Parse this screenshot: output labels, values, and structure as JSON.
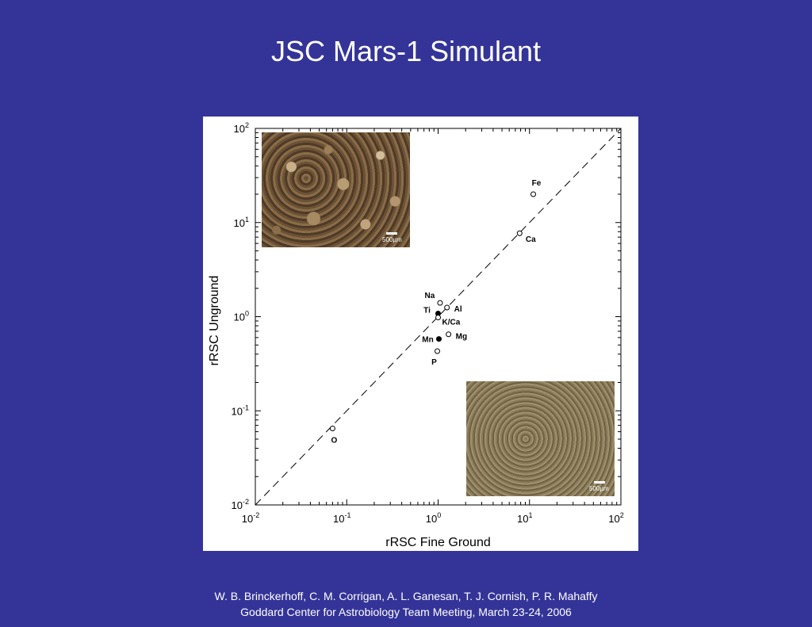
{
  "slide": {
    "title": "JSC Mars-1 Simulant",
    "footer_authors": "W. B. Brinckerhoff, C. M. Corrigan, A. L. Ganesan, T. J. Cornish, P. R. Mahaffy",
    "footer_meeting": "Goddard Center for Astrobiology Team Meeting, March 23-24, 2006"
  },
  "colors": {
    "background": "#343498",
    "panel": "#ffffff",
    "text": "#ffffff"
  },
  "insets": {
    "unground_scale": "500µm",
    "fine_scale": "500µm"
  },
  "chart_data": {
    "type": "scatter",
    "title": "",
    "xlabel": "rRSC Fine Ground",
    "ylabel": "rRSC Unground",
    "xscale": "log",
    "yscale": "log",
    "xlim": [
      0.01,
      100
    ],
    "ylim": [
      0.01,
      100
    ],
    "x_ticks": [
      {
        "base": "10",
        "exp": "-2"
      },
      {
        "base": "10",
        "exp": "-1"
      },
      {
        "base": "10",
        "exp": "0"
      },
      {
        "base": "10",
        "exp": "1"
      },
      {
        "base": "10",
        "exp": "2"
      }
    ],
    "y_ticks": [
      {
        "base": "10",
        "exp": "-2"
      },
      {
        "base": "10",
        "exp": "-1"
      },
      {
        "base": "10",
        "exp": "0"
      },
      {
        "base": "10",
        "exp": "1"
      },
      {
        "base": "10",
        "exp": "2"
      }
    ],
    "reference_line": "y = x (dashed)",
    "grid": false,
    "points": [
      {
        "label": "Fe",
        "x": 11,
        "y": 20,
        "filled": false
      },
      {
        "label": "Ca",
        "x": 7.8,
        "y": 7.7,
        "filled": false
      },
      {
        "label": "Na",
        "x": 1.05,
        "y": 1.4,
        "filled": false
      },
      {
        "label": "Al",
        "x": 1.25,
        "y": 1.25,
        "filled": false
      },
      {
        "label": "Ti",
        "x": 1.0,
        "y": 1.08,
        "filled": true
      },
      {
        "label": "K/Ca",
        "x": 1.0,
        "y": 0.98,
        "filled": false
      },
      {
        "label": "Mg",
        "x": 1.3,
        "y": 0.65,
        "filled": false
      },
      {
        "label": "Mn",
        "x": 1.02,
        "y": 0.58,
        "filled": true
      },
      {
        "label": "P",
        "x": 0.98,
        "y": 0.43,
        "filled": false
      },
      {
        "label": "O",
        "x": 0.07,
        "y": 0.065,
        "filled": false
      }
    ]
  }
}
